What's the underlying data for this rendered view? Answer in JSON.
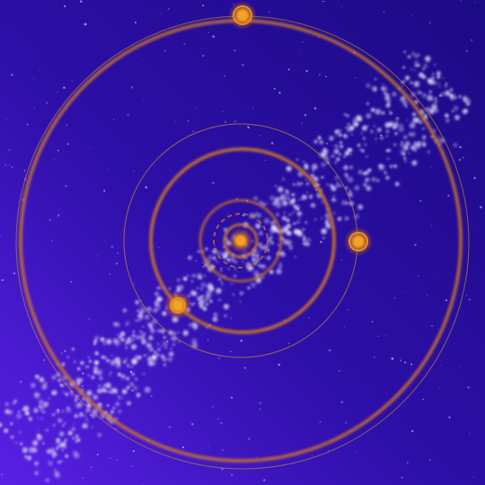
{
  "scene": {
    "name": "orbital-system-view",
    "colors": {
      "background_top_right": "#1f0b8a",
      "background_bottom_left": "#5a1ee0",
      "orbit": "#c8782a",
      "orbit_thin": "#b8863a",
      "planet_core": "#f0a020",
      "planet_glow": "#e8821e",
      "star_cluster": "#d9d4f0"
    },
    "central_body": {
      "icon": "central-star-icon"
    },
    "orbits": [
      {
        "name": "orbit-inner-1",
        "style": "thick"
      },
      {
        "name": "orbit-inner-2",
        "style": "dashed"
      },
      {
        "name": "orbit-inner-3",
        "style": "thick"
      },
      {
        "name": "orbit-mid",
        "style": "thick"
      },
      {
        "name": "orbit-mid-thin",
        "style": "thin"
      },
      {
        "name": "orbit-outer",
        "style": "thick"
      },
      {
        "name": "orbit-outer-thin",
        "style": "thin"
      }
    ],
    "planets": [
      {
        "name": "planet-top",
        "icon": "planet-icon"
      },
      {
        "name": "planet-right",
        "icon": "planet-icon"
      },
      {
        "name": "planet-left",
        "icon": "planet-icon"
      }
    ]
  }
}
